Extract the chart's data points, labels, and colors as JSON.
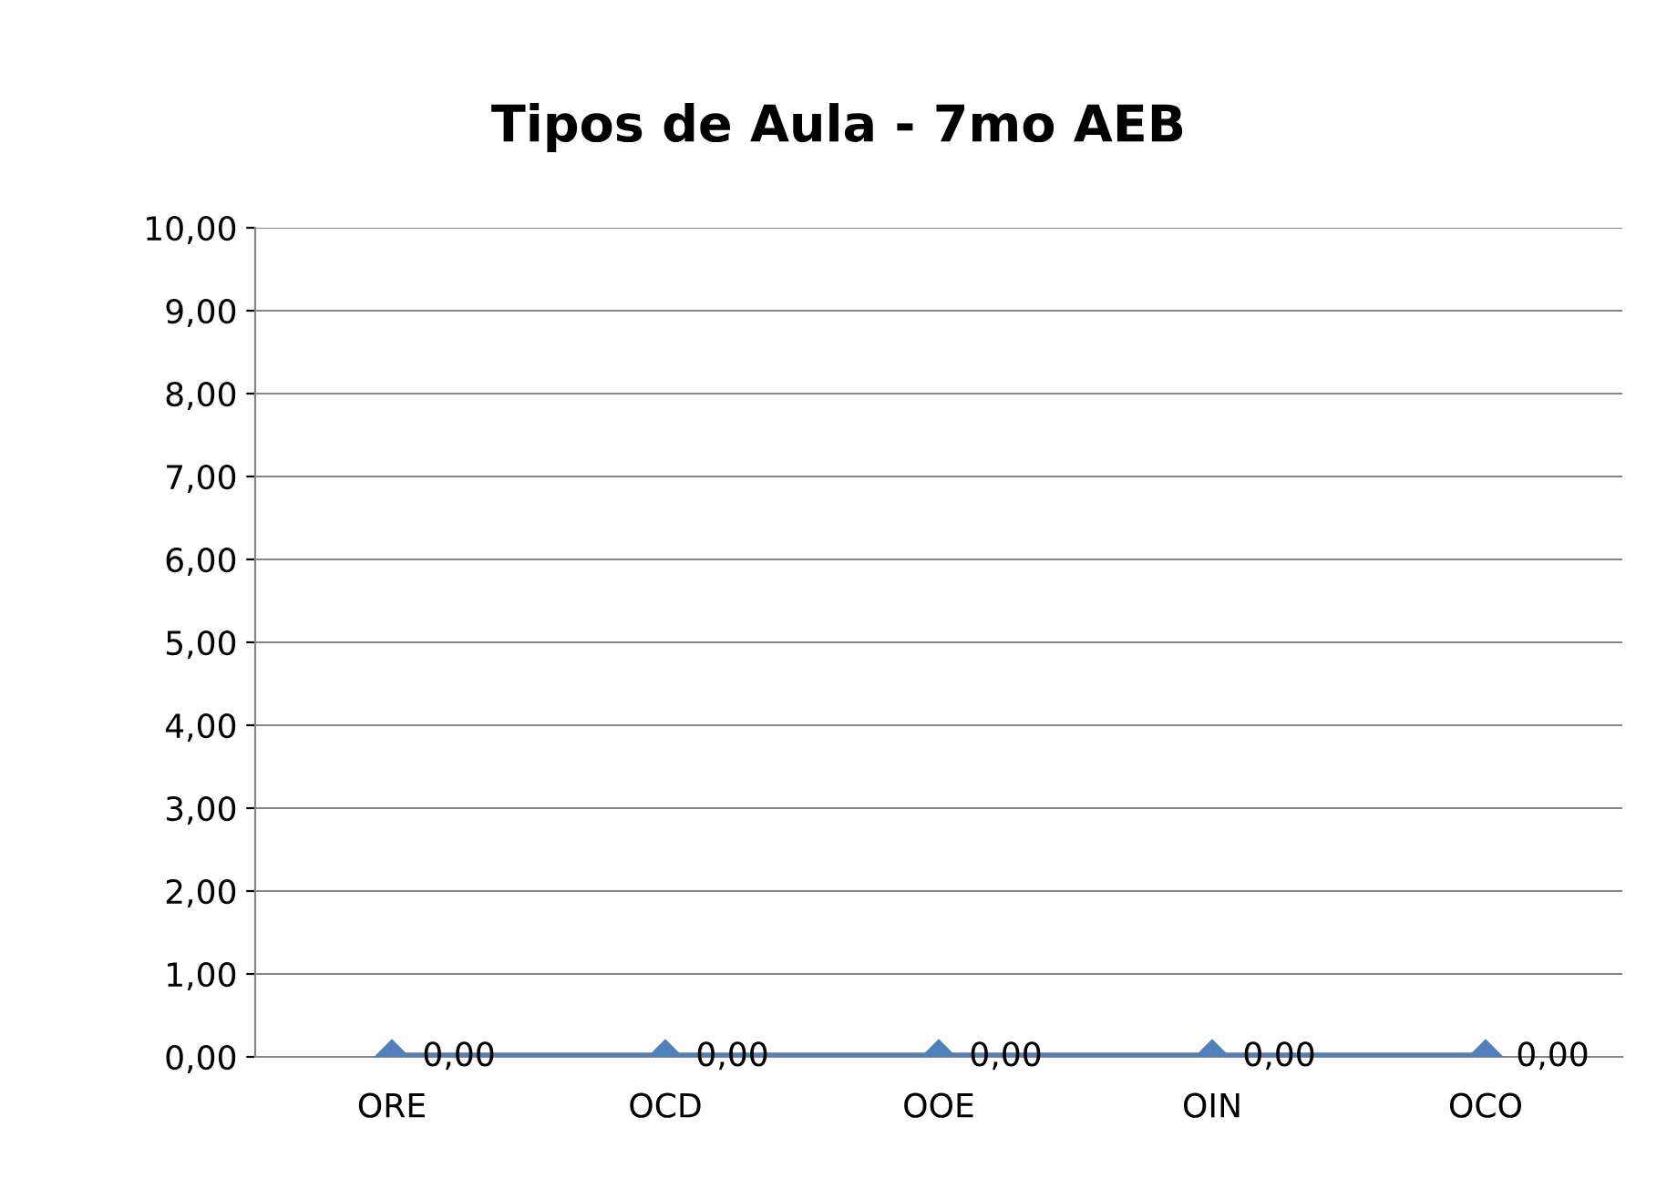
{
  "chart_data": {
    "type": "line",
    "title": "Tipos de Aula - 7mo AEB",
    "categories": [
      "ORE",
      "OCD",
      "OOE",
      "OIN",
      "OCO"
    ],
    "series": [
      {
        "color": "#4f81bd",
        "values": [
          0,
          0,
          0,
          0,
          0
        ],
        "value_labels": [
          "0,00",
          "0,00",
          "0,00",
          "0,00",
          "0,00"
        ]
      }
    ],
    "ylim": [
      0,
      10
    ],
    "yticks": [
      {
        "value": 0,
        "label": "0,00"
      },
      {
        "value": 1,
        "label": "1,00"
      },
      {
        "value": 2,
        "label": "2,00"
      },
      {
        "value": 3,
        "label": "3,00"
      },
      {
        "value": 4,
        "label": "4,00"
      },
      {
        "value": 5,
        "label": "5,00"
      },
      {
        "value": 6,
        "label": "6,00"
      },
      {
        "value": 7,
        "label": "7,00"
      },
      {
        "value": 8,
        "label": "8,00"
      },
      {
        "value": 9,
        "label": "9,00"
      },
      {
        "value": 10,
        "label": "10,00"
      }
    ],
    "grid": "y",
    "marker": "diamond",
    "line_style": "solid"
  }
}
